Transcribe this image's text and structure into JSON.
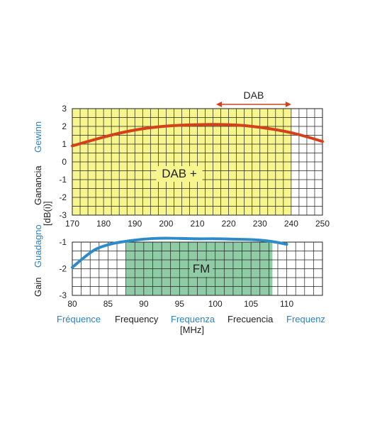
{
  "colors": {
    "dab_band": "#f7f58d",
    "fm_band": "#8fcca6",
    "dab_curve": "#d5401a",
    "fm_curve": "#2d8bc9",
    "grid": "#222222",
    "blue_text": "#2b83c2",
    "dark_text": "#222222"
  },
  "axis_words": {
    "gain": [
      "Gain",
      "Guadagno",
      "Ganancia",
      "Gewinn"
    ],
    "unit_gain": "[dB(i)]",
    "frequency": [
      "Fréquence",
      "Frequency",
      "Frequenza",
      "Frecuencia",
      "Frequenz"
    ],
    "unit_freq": "[MHz]"
  },
  "chart_data": [
    {
      "type": "line",
      "title": "",
      "band_label": "DAB +",
      "range_label": "DAB",
      "range_arrow": [
        216,
        240
      ],
      "highlight_band": [
        170,
        240
      ],
      "xlim": [
        170,
        250
      ],
      "ylim": [
        -3,
        3
      ],
      "xticks": [
        170,
        180,
        190,
        200,
        210,
        220,
        230,
        240,
        250
      ],
      "yticks": [
        3,
        2,
        1,
        0,
        -1,
        -2,
        -3
      ],
      "grid": true,
      "series": [
        {
          "x": [
            170,
            175,
            180,
            185,
            190,
            195,
            200,
            205,
            210,
            215,
            220,
            225,
            230,
            235,
            240,
            245,
            250
          ],
          "y": [
            0.9,
            1.15,
            1.4,
            1.62,
            1.8,
            1.93,
            2.02,
            2.07,
            2.1,
            2.11,
            2.1,
            2.05,
            1.95,
            1.82,
            1.65,
            1.42,
            1.15
          ]
        }
      ]
    },
    {
      "type": "line",
      "title": "",
      "band_label": "FM",
      "highlight_band": [
        87.5,
        108
      ],
      "xlim": [
        80,
        115
      ],
      "ylim": [
        -3,
        -1
      ],
      "xticks": [
        80,
        85,
        90,
        95,
        100,
        105,
        110
      ],
      "yticks": [
        -1,
        -2,
        -3
      ],
      "grid": true,
      "series": [
        {
          "x": [
            80,
            81,
            82,
            83,
            84,
            85,
            86,
            87.5,
            90,
            92.5,
            95,
            97.5,
            100,
            102.5,
            105,
            107.5,
            110
          ],
          "y": [
            -1.95,
            -1.72,
            -1.5,
            -1.3,
            -1.18,
            -1.1,
            -1.03,
            -0.97,
            -0.88,
            -0.85,
            -0.86,
            -0.88,
            -0.87,
            -0.89,
            -0.9,
            -0.95,
            -1.08
          ]
        }
      ]
    }
  ]
}
